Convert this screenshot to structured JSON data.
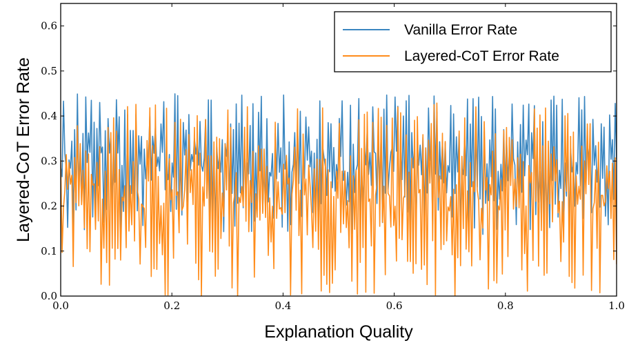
{
  "chart_data": {
    "type": "line",
    "xlabel": "Explanation Quality",
    "ylabel": "Layered-CoT Error Rate",
    "xlim": [
      0.0,
      1.0
    ],
    "ylim": [
      0.0,
      0.65
    ],
    "xticks": [
      "0.0",
      "0.2",
      "0.4",
      "0.6",
      "0.8",
      "1.0"
    ],
    "yticks": [
      "0.0",
      "0.1",
      "0.2",
      "0.3",
      "0.4",
      "0.5",
      "0.6"
    ],
    "legend_position": "top-right",
    "n_points": 400,
    "series": [
      {
        "name": "Vanilla Error Rate",
        "color": "#3a86c0",
        "range": [
          0.13,
          0.45
        ],
        "pattern": "dense noisy oscillation"
      },
      {
        "name": "Layered-CoT Error Rate",
        "color": "#ff8c1a",
        "range": [
          0.0,
          0.43
        ],
        "pattern": "dense noisy oscillation"
      }
    ]
  }
}
